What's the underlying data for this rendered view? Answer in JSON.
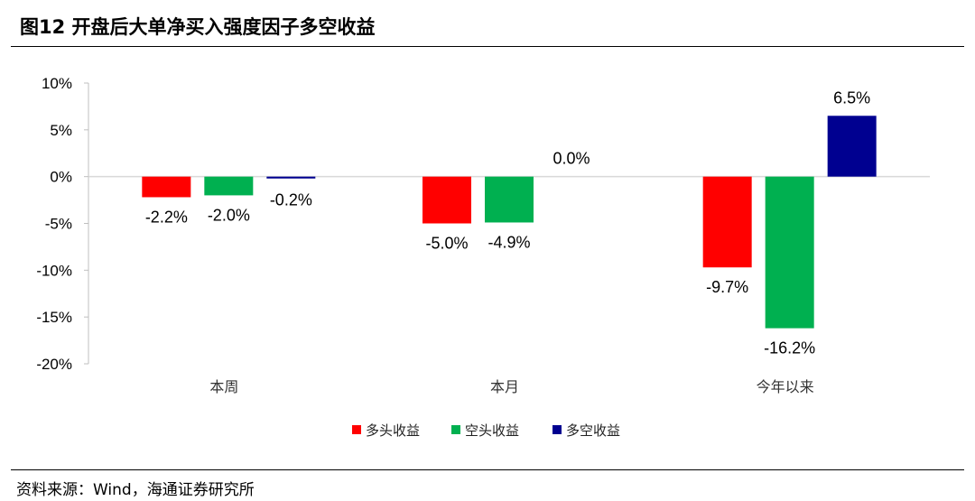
{
  "figure_title": "图12 开盘后大单净买入强度因子多空收益",
  "source": "资料来源：Wind，海通证券研究所",
  "chart_data": {
    "type": "bar",
    "title": "",
    "xlabel": "",
    "ylabel": "",
    "categories": [
      "本周",
      "本月",
      "今年以来"
    ],
    "ylim": [
      -20,
      10
    ],
    "yticks": [
      10,
      5,
      0,
      -5,
      -10,
      -15,
      -20
    ],
    "ytick_labels": [
      "10%",
      "5%",
      "0%",
      "-5%",
      "-10%",
      "-15%",
      "-20%"
    ],
    "series": [
      {
        "name": "多头收益",
        "color": "#ff0000",
        "values": [
          -2.2,
          -5.0,
          -9.7
        ],
        "labels": [
          "-2.2%",
          "-5.0%",
          "-9.7%"
        ]
      },
      {
        "name": "空头收益",
        "color": "#00b050",
        "values": [
          -2.0,
          -4.9,
          -16.2
        ],
        "labels": [
          "-2.0%",
          "-4.9%",
          "-16.2%"
        ]
      },
      {
        "name": "多空收益",
        "color": "#000090",
        "values": [
          -0.2,
          0.0,
          6.5
        ],
        "labels": [
          "-0.2%",
          "0.0%",
          "6.5%"
        ]
      }
    ],
    "legend_position": "bottom",
    "grid": false
  }
}
